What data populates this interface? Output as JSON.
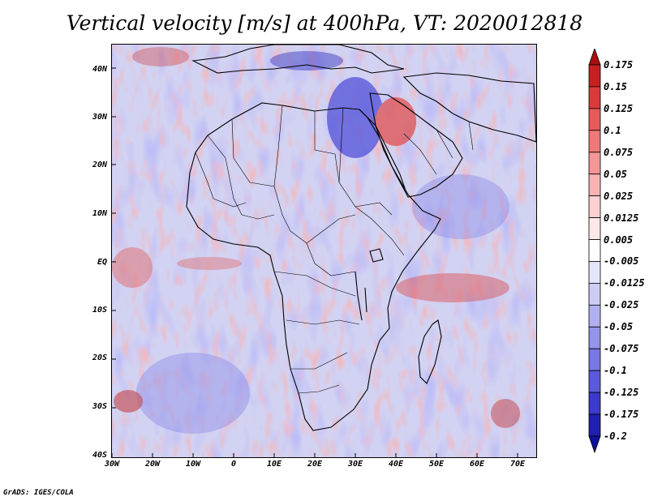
{
  "title": "Vertical velocity [m/s] at 400hPa, VT: 2020012818",
  "credit": "GrADS: IGES/COLA",
  "map": {
    "variable": "Vertical velocity",
    "units": "m/s",
    "level": "400hPa",
    "valid_time": "2020012818",
    "lon_range": [
      -30,
      75
    ],
    "lat_range": [
      -40,
      45
    ],
    "lat_ticks": [
      {
        "value": 40,
        "label": "40N"
      },
      {
        "value": 30,
        "label": "30N"
      },
      {
        "value": 20,
        "label": "20N"
      },
      {
        "value": 10,
        "label": "10N"
      },
      {
        "value": 0,
        "label": "EQ"
      },
      {
        "value": -10,
        "label": "10S"
      },
      {
        "value": -20,
        "label": "20S"
      },
      {
        "value": -30,
        "label": "30S"
      },
      {
        "value": -40,
        "label": "40S"
      }
    ],
    "lon_ticks": [
      {
        "value": -30,
        "label": "30W"
      },
      {
        "value": -20,
        "label": "20W"
      },
      {
        "value": -10,
        "label": "10W"
      },
      {
        "value": 0,
        "label": "0"
      },
      {
        "value": 10,
        "label": "10E"
      },
      {
        "value": 20,
        "label": "20E"
      },
      {
        "value": 30,
        "label": "30E"
      },
      {
        "value": 40,
        "label": "40E"
      },
      {
        "value": 50,
        "label": "50E"
      },
      {
        "value": 60,
        "label": "60E"
      },
      {
        "value": 70,
        "label": "70E"
      }
    ],
    "colors": {
      "background": "#d7d7ef",
      "land_outline": "#000000"
    }
  },
  "colorbar": {
    "labels": [
      "0.175",
      "0.15",
      "0.125",
      "0.1",
      "0.075",
      "0.05",
      "0.025",
      "0.0125",
      "0.005",
      "-0.005",
      "-0.0125",
      "-0.025",
      "-0.05",
      "-0.075",
      "-0.1",
      "-0.125",
      "-0.175",
      "-0.2"
    ],
    "colors": [
      "#a81010",
      "#c82020",
      "#dc3a3a",
      "#e85a5a",
      "#f07878",
      "#f59696",
      "#f8b2b2",
      "#fbd0d0",
      "#fde8e8",
      "#ffffff",
      "#e4e4fa",
      "#ccccf5",
      "#b0b0f0",
      "#9494ea",
      "#7878e3",
      "#5a5adb",
      "#3a3acc",
      "#2020b0",
      "#10109a"
    ]
  }
}
